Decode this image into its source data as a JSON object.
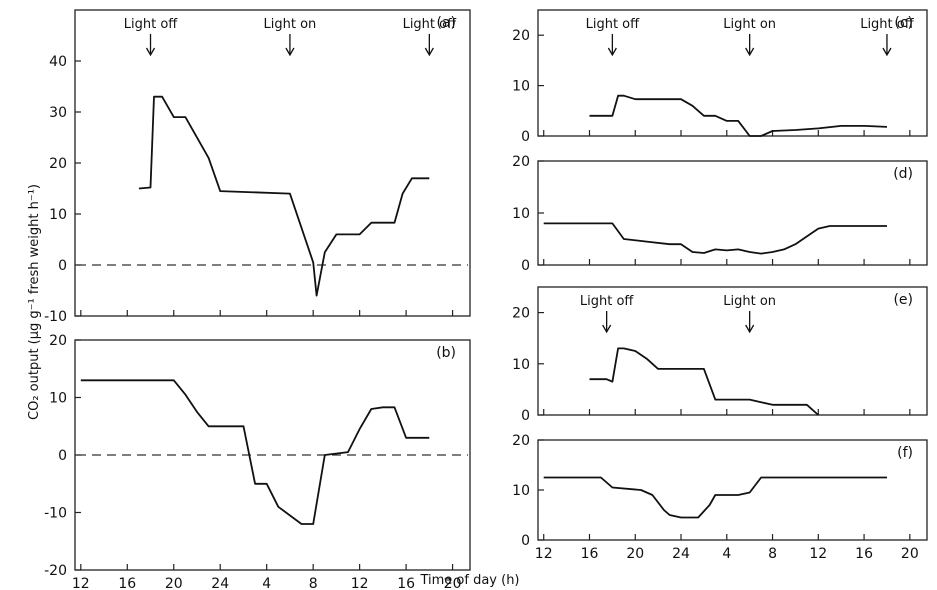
{
  "chart_data": [
    {
      "id": "a",
      "type": "line",
      "panel_label": "(a)",
      "x": [
        17,
        18,
        18.3,
        19,
        20,
        21,
        23,
        24,
        30,
        32,
        32.3,
        33,
        34,
        35,
        36,
        37,
        38,
        39,
        39.7,
        40.5,
        42
      ],
      "y": [
        15,
        15.2,
        33,
        33,
        29,
        29,
        21,
        14.5,
        14,
        0.5,
        -6,
        2.5,
        6,
        6,
        6,
        8.3,
        8.3,
        8.3,
        14,
        17,
        17
      ],
      "xlim": [
        11.5,
        45.5
      ],
      "ylim": [
        -10,
        50
      ],
      "ytick_values": [
        -10,
        0,
        10,
        20,
        30,
        40
      ],
      "ytick_labels": [
        "-10",
        "0",
        "10",
        "20",
        "30",
        "40"
      ],
      "zero_line": true,
      "annotations": [
        {
          "text": "Light off",
          "x": 18
        },
        {
          "text": "Light on",
          "x": 30
        },
        {
          "text": "Light off",
          "x": 42
        }
      ]
    },
    {
      "id": "b",
      "type": "line",
      "panel_label": "(b)",
      "x": [
        12,
        20,
        21,
        22,
        23,
        24,
        26,
        27,
        28,
        29,
        31,
        32,
        33,
        35,
        36,
        37,
        38,
        39,
        40,
        41,
        42
      ],
      "y": [
        13,
        13,
        10.5,
        7.5,
        5,
        5,
        5,
        -5,
        -5,
        -9,
        -12,
        -12,
        0,
        0.5,
        4.5,
        8,
        8.3,
        8.3,
        3,
        3,
        3
      ],
      "xlim": [
        11.5,
        45.5
      ],
      "ylim": [
        -20,
        20
      ],
      "ytick_values": [
        -20,
        -10,
        0,
        10,
        20
      ],
      "ytick_labels": [
        "-20",
        "-10",
        "0",
        "10",
        "20"
      ],
      "zero_line": true,
      "xtick_values": [
        12,
        16,
        20,
        24,
        28,
        32,
        36,
        40,
        44
      ],
      "xtick_labels": [
        "12",
        "16",
        "20",
        "24",
        "4",
        "8",
        "12",
        "16",
        "20"
      ]
    },
    {
      "id": "c",
      "type": "line",
      "panel_label": "(c)",
      "x": [
        16,
        18,
        18.5,
        19,
        20,
        22,
        24,
        25,
        26,
        27,
        28,
        29,
        30,
        31,
        32,
        34,
        36,
        38,
        40,
        42
      ],
      "y": [
        4,
        4,
        8,
        8,
        7.3,
        7.3,
        7.3,
        6,
        4,
        4,
        3,
        3,
        0,
        0,
        1,
        1.2,
        1.5,
        2,
        2,
        1.8
      ],
      "xlim": [
        11.5,
        45.5
      ],
      "ylim": [
        0,
        25
      ],
      "ytick_values": [
        0,
        10,
        20
      ],
      "ytick_labels": [
        "0",
        "10",
        "20"
      ],
      "annotations": [
        {
          "text": "Light off",
          "x": 18
        },
        {
          "text": "Light on",
          "x": 30
        },
        {
          "text": "Light off",
          "x": 42
        }
      ]
    },
    {
      "id": "d",
      "type": "line",
      "panel_label": "(d)",
      "x": [
        12,
        18,
        19,
        21,
        23,
        24,
        25,
        26,
        27,
        28,
        29,
        30,
        31,
        32,
        33,
        34,
        35,
        36,
        37,
        38,
        42
      ],
      "y": [
        8,
        8,
        5,
        4.5,
        4,
        4,
        2.5,
        2.3,
        3,
        2.8,
        3,
        2.5,
        2.2,
        2.5,
        3,
        4,
        5.5,
        7,
        7.5,
        7.5,
        7.5
      ],
      "xlim": [
        11.5,
        45.5
      ],
      "ylim": [
        0,
        20
      ],
      "ytick_values": [
        0,
        10,
        20
      ],
      "ytick_labels": [
        "0",
        "10",
        "20"
      ]
    },
    {
      "id": "e",
      "type": "line",
      "panel_label": "(e)",
      "x": [
        16,
        17.5,
        18,
        18.5,
        19,
        20,
        21,
        22,
        23,
        24,
        25,
        26,
        27,
        28,
        30,
        31,
        32,
        33,
        34,
        35,
        36
      ],
      "y": [
        7,
        7,
        6.5,
        13,
        13,
        12.5,
        11,
        9,
        9,
        9,
        9,
        9,
        3,
        3,
        3,
        2.5,
        2,
        2,
        2,
        2,
        0
      ],
      "xlim": [
        11.5,
        45.5
      ],
      "ylim": [
        0,
        25
      ],
      "ytick_values": [
        0,
        10,
        20
      ],
      "ytick_labels": [
        "0",
        "10",
        "20"
      ],
      "annotations": [
        {
          "text": "Light off",
          "x": 17.5
        },
        {
          "text": "Light on",
          "x": 30
        }
      ]
    },
    {
      "id": "f",
      "type": "line",
      "panel_label": "(f)",
      "x": [
        12,
        17,
        18,
        20.5,
        21.5,
        22.5,
        23,
        24,
        25,
        25.5,
        26.5,
        27,
        29,
        30,
        31,
        42
      ],
      "y": [
        12.5,
        12.5,
        10.5,
        10,
        9,
        6,
        5,
        4.5,
        4.5,
        4.5,
        7,
        9,
        9,
        9.5,
        12.5,
        12.5
      ],
      "xlim": [
        11.5,
        45.5
      ],
      "ylim": [
        0,
        20
      ],
      "ytick_values": [
        0,
        10,
        20
      ],
      "ytick_labels": [
        "0",
        "10",
        "20"
      ],
      "xtick_values": [
        12,
        16,
        20,
        24,
        28,
        32,
        36,
        40,
        44
      ],
      "xtick_labels": [
        "12",
        "16",
        "20",
        "24",
        "4",
        "8",
        "12",
        "16",
        "20"
      ]
    }
  ],
  "ylabel": "CO₂ output (μg g⁻¹ fresh weight h⁻¹)",
  "xlabel": "Time of day (h)"
}
